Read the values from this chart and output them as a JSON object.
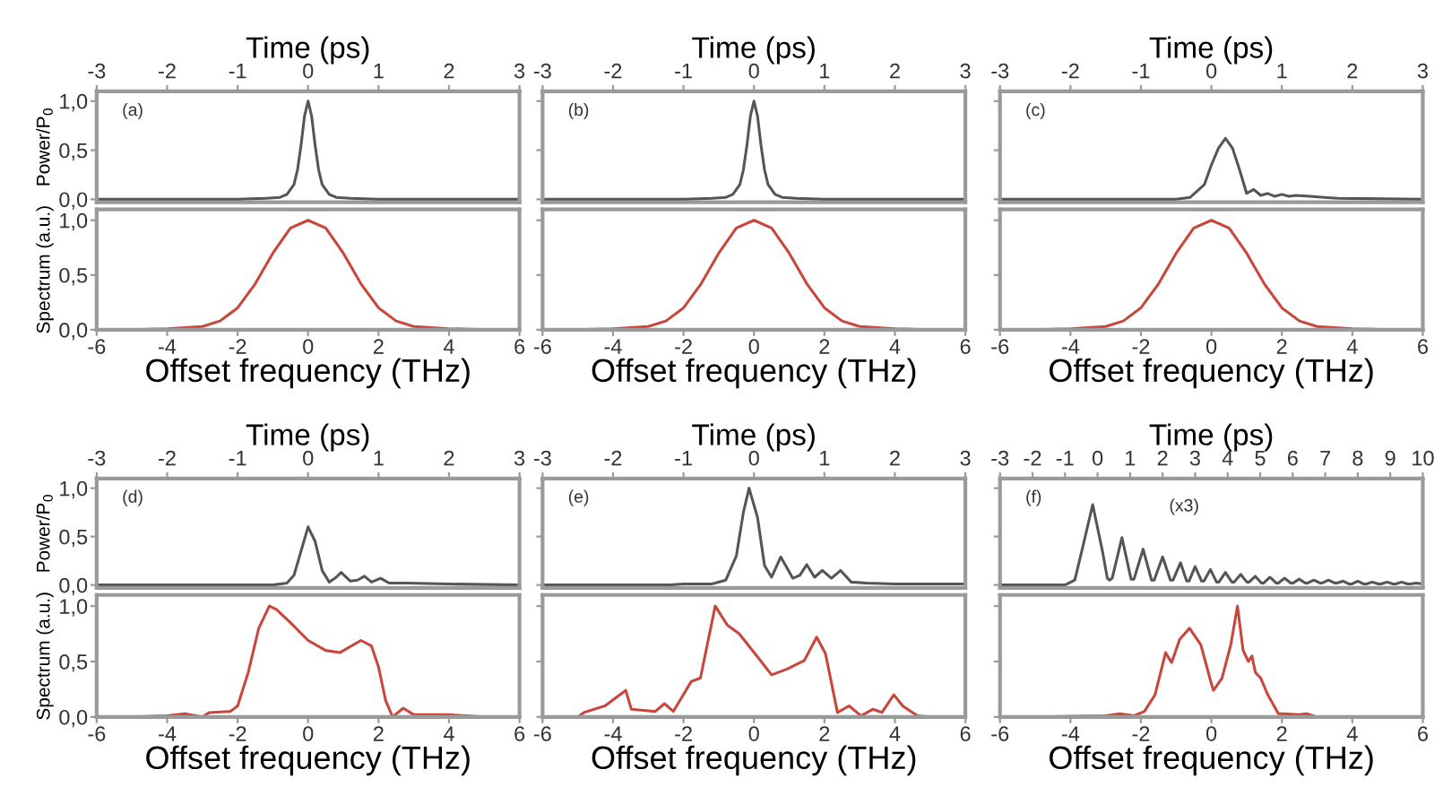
{
  "chart_data": [
    {
      "type": "line",
      "xlabel": "Time (ps)",
      "xlim": [
        -3,
        3
      ],
      "xticks": [
        -3,
        -2,
        -1,
        0,
        1,
        2,
        3
      ],
      "ylim": [
        -0.03,
        1.1
      ],
      "yticks": [
        {
          "value": 0,
          "label": "0,0"
        },
        {
          "value": 0.5,
          "label": "0,5"
        },
        {
          "value": 1,
          "label": "1,0"
        }
      ],
      "ylabel": "Power/P$_{0}$",
      "annotations": [
        "(a)"
      ],
      "series": [
        {
          "color": "#555555",
          "x": [
            -3,
            -1,
            -0.6,
            -0.4,
            -0.3,
            -0.2,
            -0.15,
            -0.1,
            -0.05,
            0,
            0.05,
            0.1,
            0.15,
            0.2,
            0.3,
            0.4,
            0.6,
            1,
            3
          ],
          "values": [
            0,
            0,
            0.01,
            0.02,
            0.05,
            0.15,
            0.3,
            0.55,
            0.85,
            1.0,
            0.85,
            0.55,
            0.3,
            0.15,
            0.05,
            0.02,
            0.01,
            0,
            0
          ]
        }
      ]
    },
    {
      "type": "line",
      "xlabel": "Offset frequency (THz)",
      "xlim": [
        -6,
        6
      ],
      "xticks": [
        -6,
        -4,
        -2,
        0,
        2,
        4,
        6
      ],
      "ylim": [
        0,
        1.1
      ],
      "yticks": [
        {
          "value": 0,
          "label": "0,0"
        },
        {
          "value": 0.5,
          "label": "0,5"
        },
        {
          "value": 1,
          "label": "1,0"
        }
      ],
      "ylabel": "Spectrum (a.u.)",
      "series": [
        {
          "color": "#c9463d",
          "x": [
            -5,
            -4,
            -3,
            -2.5,
            -2,
            -1.5,
            -1,
            -0.5,
            0,
            0.5,
            1,
            1.5,
            2,
            2.5,
            3,
            4,
            5
          ],
          "values": [
            0,
            0.01,
            0.03,
            0.08,
            0.2,
            0.42,
            0.7,
            0.93,
            1.0,
            0.93,
            0.7,
            0.42,
            0.2,
            0.08,
            0.03,
            0.01,
            0
          ]
        }
      ]
    },
    {
      "type": "line",
      "xlabel": "Time (ps)",
      "xlim": [
        -3,
        3
      ],
      "xticks": [
        -3,
        -2,
        -1,
        0,
        1,
        2,
        3
      ],
      "ylim": [
        -0.03,
        1.1
      ],
      "yticks": [
        0,
        0.5,
        1
      ],
      "tick_labels": "x",
      "annotations": [
        "(b)"
      ],
      "series": [
        {
          "color": "#555555",
          "x": [
            -3,
            -1,
            -0.6,
            -0.4,
            -0.3,
            -0.2,
            -0.15,
            -0.1,
            -0.05,
            0,
            0.05,
            0.1,
            0.15,
            0.2,
            0.3,
            0.4,
            0.6,
            1,
            3
          ],
          "values": [
            0,
            0,
            0.01,
            0.02,
            0.05,
            0.15,
            0.3,
            0.55,
            0.85,
            1.0,
            0.85,
            0.55,
            0.3,
            0.15,
            0.05,
            0.02,
            0.01,
            0,
            0
          ]
        }
      ]
    },
    {
      "type": "line",
      "xlabel": "Offset frequency (THz)",
      "xlim": [
        -6,
        6
      ],
      "xticks": [
        -6,
        -4,
        -2,
        0,
        2,
        4,
        6
      ],
      "ylim": [
        0,
        1.1
      ],
      "yticks": [
        0,
        0.5,
        1
      ],
      "tick_labels": "x",
      "series": [
        {
          "color": "#c9463d",
          "x": [
            -5,
            -4,
            -3,
            -2.5,
            -2,
            -1.5,
            -1,
            -0.5,
            0,
            0.5,
            1,
            1.5,
            2,
            2.5,
            3,
            4,
            5
          ],
          "values": [
            0,
            0.01,
            0.03,
            0.08,
            0.2,
            0.42,
            0.7,
            0.93,
            1.0,
            0.93,
            0.7,
            0.42,
            0.2,
            0.08,
            0.03,
            0.01,
            0
          ]
        }
      ]
    },
    {
      "type": "line",
      "xlabel": "Time (ps)",
      "xlim": [
        -3,
        3
      ],
      "xticks": [
        -3,
        -2,
        -1,
        0,
        1,
        2,
        3
      ],
      "ylim": [
        -0.03,
        1.1
      ],
      "yticks": [
        0,
        0.5,
        1
      ],
      "tick_labels": "x",
      "annotations": [
        "(c)"
      ],
      "series": [
        {
          "color": "#555555",
          "x": [
            -3,
            -0.5,
            -0.3,
            -0.1,
            0,
            0.1,
            0.2,
            0.3,
            0.4,
            0.5,
            0.6,
            0.7,
            0.8,
            0.9,
            1.0,
            1.1,
            1.2,
            1.4,
            1.6,
            1.8,
            3
          ],
          "values": [
            0,
            0,
            0.02,
            0.15,
            0.35,
            0.52,
            0.62,
            0.52,
            0.3,
            0.06,
            0.1,
            0.04,
            0.06,
            0.03,
            0.05,
            0.03,
            0.04,
            0.03,
            0.02,
            0.01,
            0
          ]
        }
      ]
    },
    {
      "type": "line",
      "xlabel": "Offset frequency (THz)",
      "xlim": [
        -6,
        6
      ],
      "xticks": [
        -6,
        -4,
        -2,
        0,
        2,
        4,
        6
      ],
      "ylim": [
        0,
        1.1
      ],
      "yticks": [
        0,
        0.5,
        1
      ],
      "tick_labels": "x",
      "series": [
        {
          "color": "#c9463d",
          "x": [
            -5,
            -4,
            -3,
            -2.5,
            -2,
            -1.5,
            -1,
            -0.5,
            0,
            0.5,
            1,
            1.5,
            2,
            2.5,
            3,
            4,
            5
          ],
          "values": [
            0,
            0.01,
            0.03,
            0.08,
            0.2,
            0.42,
            0.7,
            0.93,
            1.0,
            0.93,
            0.7,
            0.42,
            0.2,
            0.08,
            0.03,
            0.01,
            0
          ]
        }
      ]
    },
    {
      "type": "line",
      "xlabel": "Time (ps)",
      "xlim": [
        -3,
        3
      ],
      "xticks": [
        -3,
        -2,
        -1,
        0,
        1,
        2,
        3
      ],
      "ylim": [
        -0.03,
        1.1
      ],
      "yticks": [
        {
          "value": 0,
          "label": "0,0"
        },
        {
          "value": 0.5,
          "label": "0,5"
        },
        {
          "value": 1,
          "label": "1,0"
        }
      ],
      "ylabel": "Power/P$_{0}$",
      "annotations": [
        "(d)"
      ],
      "series": [
        {
          "color": "#555555",
          "x": [
            -3,
            -0.5,
            -0.3,
            -0.2,
            -0.1,
            0,
            0.1,
            0.2,
            0.3,
            0.4,
            0.47,
            0.6,
            0.7,
            0.8,
            0.9,
            1.03,
            1.15,
            1.4,
            2,
            3
          ],
          "values": [
            0,
            0,
            0.02,
            0.1,
            0.35,
            0.6,
            0.45,
            0.15,
            0.03,
            0.08,
            0.13,
            0.04,
            0.05,
            0.09,
            0.03,
            0.07,
            0.02,
            0.02,
            0.01,
            0
          ]
        }
      ]
    },
    {
      "type": "line",
      "xlabel": "Offset frequency (THz)",
      "xlim": [
        -6,
        6
      ],
      "xticks": [
        -6,
        -4,
        -2,
        0,
        2,
        4,
        6
      ],
      "ylim": [
        0,
        1.1
      ],
      "yticks": [
        {
          "value": 0,
          "label": "0,0"
        },
        {
          "value": 0.5,
          "label": "0,5"
        },
        {
          "value": 1,
          "label": "1,0"
        }
      ],
      "ylabel": "Spectrum (a.u.)",
      "series": [
        {
          "color": "#c9463d",
          "x": [
            -5,
            -4,
            -3.5,
            -3,
            -2.8,
            -2.2,
            -2,
            -1.7,
            -1.4,
            -1.1,
            -0.9,
            -0.5,
            0,
            0.5,
            0.9,
            1.5,
            1.8,
            2.0,
            2.2,
            2.4,
            2.7,
            3,
            3.5,
            4,
            5
          ],
          "values": [
            0,
            0.01,
            0.03,
            0.0,
            0.04,
            0.05,
            0.1,
            0.4,
            0.8,
            1.0,
            0.97,
            0.85,
            0.69,
            0.6,
            0.58,
            0.69,
            0.64,
            0.45,
            0.15,
            0.0,
            0.08,
            0.02,
            0.02,
            0.02,
            0
          ]
        }
      ]
    },
    {
      "type": "line",
      "xlabel": "Time (ps)",
      "xlim": [
        -3,
        3
      ],
      "xticks": [
        -3,
        -2,
        -1,
        0,
        1,
        2,
        3
      ],
      "ylim": [
        -0.03,
        1.1
      ],
      "yticks": [
        0,
        0.5,
        1
      ],
      "tick_labels": "x",
      "annotations": [
        "(e)"
      ],
      "series": [
        {
          "color": "#555555",
          "x": [
            -3,
            -1.2,
            -1,
            -0.6,
            -0.4,
            -0.25,
            -0.15,
            -0.07,
            0.05,
            0.15,
            0.25,
            0.38,
            0.55,
            0.65,
            0.75,
            0.86,
            0.97,
            1.1,
            1.23,
            1.38,
            1.6,
            2,
            3
          ],
          "values": [
            0,
            0,
            0.01,
            0.01,
            0.05,
            0.3,
            0.75,
            1.0,
            0.7,
            0.2,
            0.08,
            0.29,
            0.07,
            0.1,
            0.21,
            0.08,
            0.15,
            0.07,
            0.15,
            0.03,
            0.02,
            0.01,
            0.01
          ]
        }
      ]
    },
    {
      "type": "line",
      "xlabel": "Offset frequency (THz)",
      "xlim": [
        -6,
        6
      ],
      "xticks": [
        -6,
        -4,
        -2,
        0,
        2,
        4,
        6
      ],
      "ylim": [
        0,
        1.1
      ],
      "yticks": [
        0,
        0.5,
        1
      ],
      "tick_labels": "x",
      "series": [
        {
          "color": "#c9463d",
          "x": [
            -5,
            -4.83,
            -4.23,
            -3.64,
            -3.48,
            -2.8,
            -2.54,
            -2.29,
            -1.78,
            -1.52,
            -1.1,
            -0.76,
            -0.42,
            0.08,
            0.5,
            0.93,
            1.43,
            1.78,
            2.03,
            2.37,
            2.7,
            3.04,
            3.38,
            3.63,
            3.97,
            4.22,
            4.64,
            4.98
          ],
          "values": [
            0,
            0.04,
            0.1,
            0.24,
            0.07,
            0.05,
            0.12,
            0.05,
            0.32,
            0.35,
            1.0,
            0.83,
            0.75,
            0.55,
            0.38,
            0.43,
            0.51,
            0.72,
            0.57,
            0.04,
            0.1,
            0.01,
            0.07,
            0.04,
            0.2,
            0.1,
            0.01,
            0
          ]
        }
      ]
    },
    {
      "type": "line",
      "xlabel": "Time (ps)",
      "xlim": [
        -3,
        10
      ],
      "xticks": [
        -3,
        -2,
        -1,
        0,
        1,
        2,
        3,
        4,
        5,
        6,
        7,
        8,
        9,
        10
      ],
      "ylim": [
        -0.03,
        1.1
      ],
      "yticks": [
        0,
        0.5,
        1
      ],
      "tick_labels": "x",
      "annotations": [
        "(f)",
        "(x3)"
      ],
      "series": [
        {
          "color": "#555555",
          "x": [
            -3,
            -1,
            -0.7,
            -0.45,
            -0.15,
            0.15,
            0.3,
            0.37,
            0.45,
            0.75,
            1.03,
            1.12,
            1.4,
            1.66,
            1.74,
            2.0,
            2.24,
            2.32,
            2.55,
            2.74,
            2.81,
            3.0,
            3.2,
            3.27,
            3.47,
            3.66,
            3.73,
            3.93,
            4.13,
            4.2,
            4.4,
            4.59,
            4.66,
            4.85,
            5.04,
            5.11,
            5.3,
            5.49,
            5.56,
            5.75,
            5.94,
            6.01,
            6.2,
            6.39,
            6.46,
            6.65,
            6.84,
            6.91,
            7.1,
            7.29,
            7.36,
            7.55,
            7.74,
            7.81,
            8.0,
            8.19,
            8.26,
            8.45,
            8.64,
            8.71,
            8.9,
            9.09,
            9.16,
            9.35,
            9.54,
            9.61,
            9.8,
            10
          ],
          "values": [
            0,
            0,
            0.05,
            0.4,
            0.83,
            0.35,
            0.07,
            0.05,
            0.07,
            0.49,
            0.06,
            0.06,
            0.37,
            0.05,
            0.05,
            0.29,
            0.05,
            0.05,
            0.23,
            0.04,
            0.04,
            0.19,
            0.04,
            0.04,
            0.16,
            0.03,
            0.03,
            0.13,
            0.03,
            0.03,
            0.11,
            0.03,
            0.03,
            0.09,
            0.02,
            0.02,
            0.08,
            0.02,
            0.02,
            0.07,
            0.02,
            0.02,
            0.06,
            0.02,
            0.02,
            0.05,
            0.02,
            0.02,
            0.05,
            0.02,
            0.02,
            0.04,
            0.01,
            0.01,
            0.04,
            0.01,
            0.01,
            0.03,
            0.01,
            0.01,
            0.03,
            0.01,
            0.01,
            0.03,
            0.01,
            0.01,
            0.02,
            0.01
          ]
        }
      ]
    },
    {
      "type": "line",
      "xlabel": "Offset frequency (THz)",
      "xlim": [
        -6,
        6
      ],
      "xticks": [
        -6,
        -4,
        -2,
        0,
        2,
        4,
        6
      ],
      "ylim": [
        0,
        1.1
      ],
      "yticks": [
        0,
        0.5,
        1
      ],
      "tick_labels": "x",
      "series": [
        {
          "color": "#c9463d",
          "x": [
            -5,
            -3,
            -2.6,
            -2.2,
            -1.9,
            -1.6,
            -1.3,
            -1.13,
            -0.9,
            -0.62,
            -0.3,
            0,
            0.06,
            0.3,
            0.55,
            0.74,
            0.9,
            1.05,
            1.15,
            1.25,
            1.4,
            1.6,
            1.9,
            2.5,
            2.7,
            3,
            5
          ],
          "values": [
            0,
            0.01,
            0.03,
            0.01,
            0.05,
            0.2,
            0.58,
            0.49,
            0.7,
            0.8,
            0.65,
            0.3,
            0.24,
            0.35,
            0.65,
            1.0,
            0.6,
            0.5,
            0.55,
            0.4,
            0.35,
            0.2,
            0.03,
            0.02,
            0.03,
            0,
            0
          ]
        }
      ]
    }
  ]
}
